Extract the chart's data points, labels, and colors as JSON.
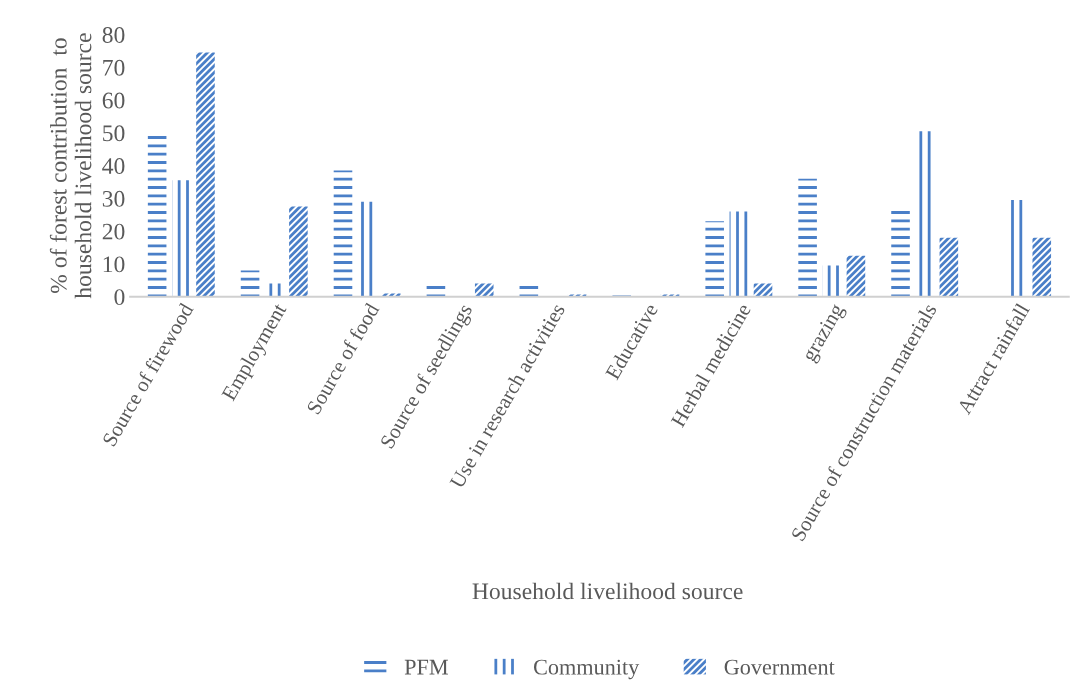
{
  "chart_data": {
    "type": "bar",
    "xlabel": "Household livelihood source",
    "ylabel": "% of forest contribution  to household livelihood source",
    "categories": [
      "Source of firewood",
      "Employment",
      "Source of food",
      "Source of seedlings",
      "Use in research activities",
      "Educative",
      "Herbal medicine",
      "grazing",
      "Source of construction materials",
      "Attract rainfall"
    ],
    "series": [
      {
        "name": "PFM",
        "color": "#4a7fc8",
        "values": [
          49,
          8,
          38.5,
          3.5,
          3.5,
          0.4,
          23,
          36,
          26.5,
          0
        ]
      },
      {
        "name": "Community",
        "color": "#4a7fc8",
        "values": [
          35.5,
          4,
          29,
          0,
          0,
          0,
          26,
          9.5,
          50.5,
          29.5
        ]
      },
      {
        "name": "Government",
        "color": "#4a7fc8",
        "values": [
          74.5,
          27.5,
          1,
          4,
          0.7,
          0.7,
          4,
          12.5,
          18,
          18
        ]
      }
    ],
    "ylim": [
      0,
      80
    ],
    "yticks": [
      0,
      10,
      20,
      30,
      40,
      50,
      60,
      70,
      80
    ],
    "grid": false,
    "legend": "bottom"
  }
}
